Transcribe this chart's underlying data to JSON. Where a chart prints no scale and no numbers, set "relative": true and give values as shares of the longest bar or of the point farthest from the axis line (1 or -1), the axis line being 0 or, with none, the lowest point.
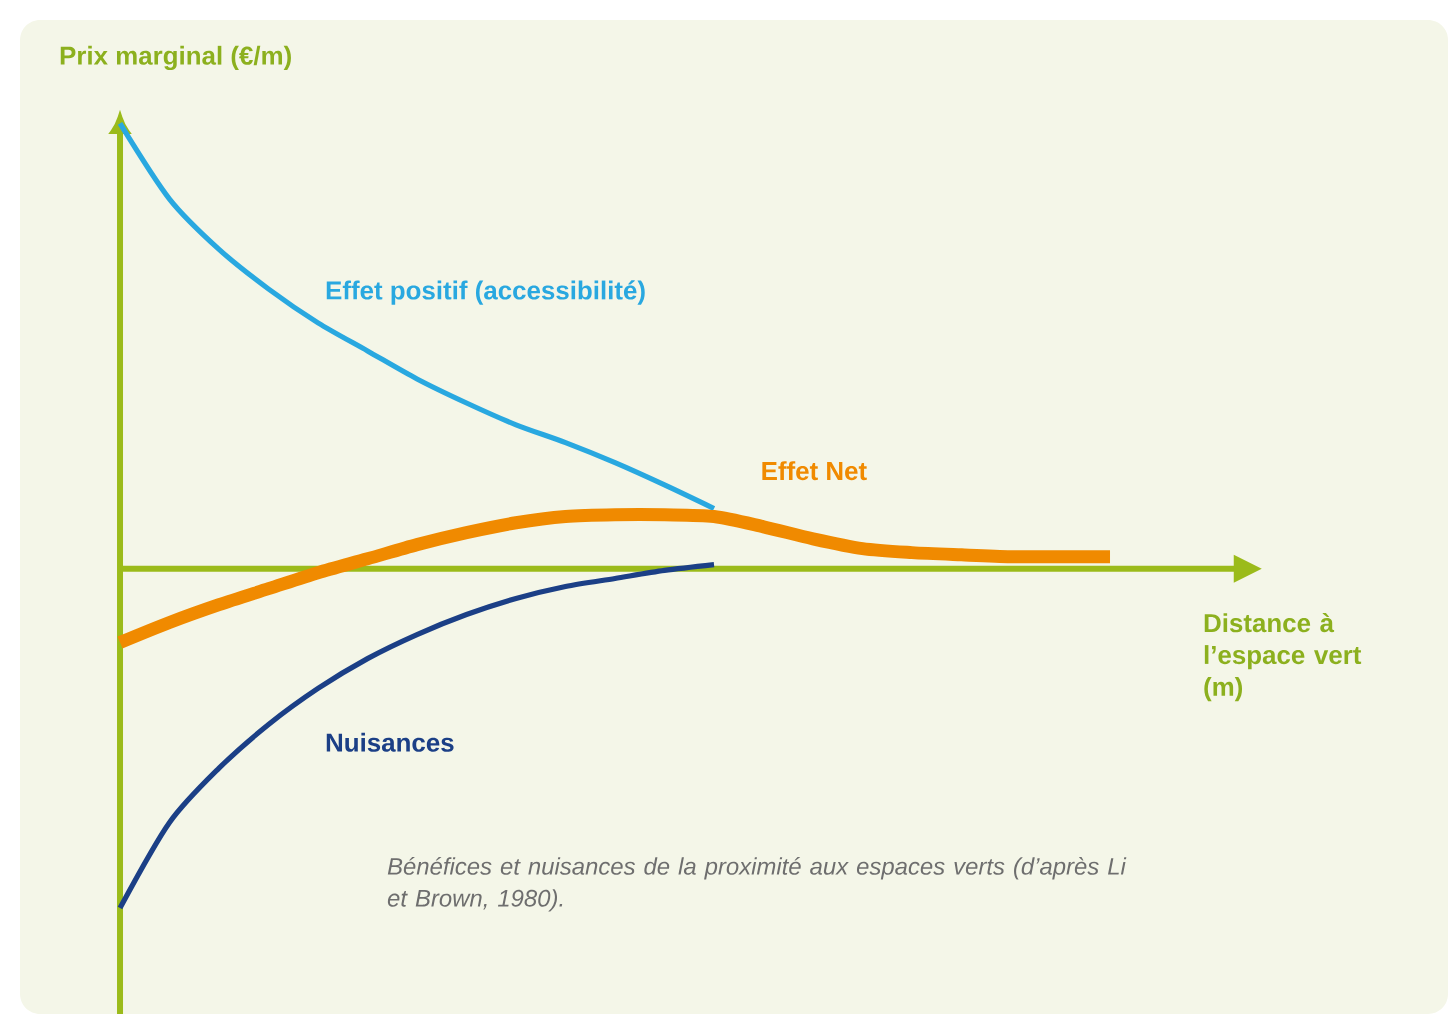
{
  "chart_data": {
    "type": "line",
    "relative": true,
    "ylabel": "Prix marginal (€/m)",
    "xlabel": "Distance à l’espace vert (m)",
    "ref_lines": [
      {
        "axis": "y",
        "value": 0,
        "color": "#9bbb1a"
      }
    ],
    "categories": [
      null,
      null,
      null,
      null,
      null,
      null,
      null,
      null,
      null,
      null,
      null,
      null,
      null,
      null,
      null,
      null,
      null,
      null,
      null,
      null,
      null
    ],
    "series": [
      {
        "name": "Effet positif (accessibilité)",
        "color": "#29a8e0",
        "values": [
          1.0,
          0.83,
          0.717,
          0.628,
          0.552,
          0.489,
          0.426,
          0.372,
          0.323,
          0.283,
          0.238,
          0.188,
          0.135,
          null,
          null,
          null,
          null,
          null,
          null,
          null,
          null
        ]
      },
      {
        "name": "Effet Net",
        "color": "#f08a00",
        "values": [
          -0.166,
          -0.121,
          -0.081,
          -0.045,
          -0.009,
          0.022,
          0.054,
          0.081,
          0.103,
          0.117,
          0.121,
          0.121,
          0.117,
          0.094,
          0.067,
          0.045,
          0.036,
          0.031,
          0.027,
          0.027,
          0.027
        ]
      },
      {
        "name": "Nuisances",
        "color": "#1b3f86",
        "values": [
          -0.762,
          -0.57,
          -0.448,
          -0.35,
          -0.269,
          -0.202,
          -0.148,
          -0.103,
          -0.067,
          -0.04,
          -0.022,
          -0.004,
          0.009,
          null,
          null,
          null,
          null,
          null,
          null,
          null,
          null
        ]
      }
    ],
    "annotations": [
      "Bénéfices et nuisances de la proximité aux espaces verts (d’après Li et Brown, 1980)."
    ]
  }
}
